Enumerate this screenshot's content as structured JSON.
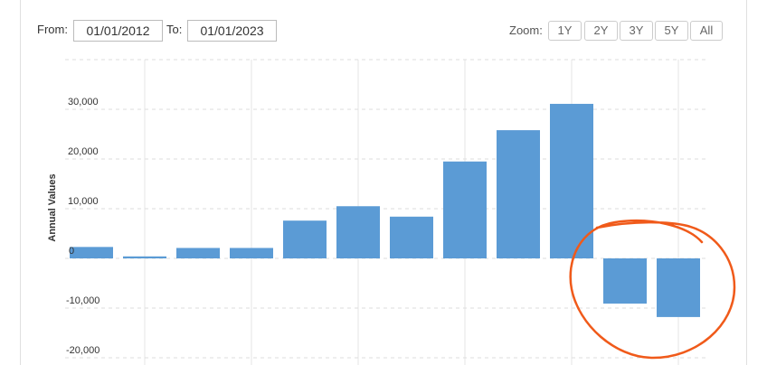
{
  "controls": {
    "from_label": "From:",
    "from_value": "01/01/2012",
    "to_label": "To:",
    "to_value": "01/01/2023",
    "zoom_label": "Zoom:",
    "zoom_buttons": [
      "1Y",
      "2Y",
      "3Y",
      "5Y",
      "All"
    ]
  },
  "chart_data": {
    "type": "bar",
    "y_label": "Annual Values",
    "categories": [
      null,
      null,
      null,
      null,
      null,
      null,
      null,
      null,
      null,
      null,
      null,
      null
    ],
    "values": [
      2300,
      400,
      2100,
      2100,
      7600,
      10500,
      8400,
      19500,
      25800,
      31100,
      -9100,
      -11800
    ],
    "color": "#5b9bd5",
    "ylim": [
      -21000,
      40000
    ],
    "yticks": [
      {
        "value": 30000,
        "label": "30,000"
      },
      {
        "value": 20000,
        "label": "20,000"
      },
      {
        "value": 10000,
        "label": "10,000"
      },
      0,
      {
        "value": -10000,
        "label": "-10,000"
      },
      {
        "value": -20000,
        "label": "-20,000"
      }
    ],
    "grid": true
  }
}
